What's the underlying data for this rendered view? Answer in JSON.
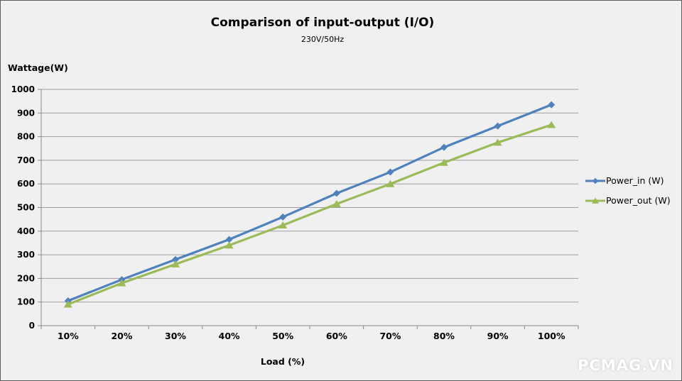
{
  "chart_data": {
    "type": "line",
    "title": "Comparison of input-output (I/O)",
    "subtitle": "230V/50Hz",
    "ylabel": "Wattage(W)",
    "xlabel": "Load (%)",
    "categories": [
      "10%",
      "20%",
      "30%",
      "40%",
      "50%",
      "60%",
      "70%",
      "80%",
      "90%",
      "100%"
    ],
    "series": [
      {
        "name": "Power_in (W)",
        "color": "#4F81BD",
        "marker": "diamond",
        "values": [
          105,
          195,
          280,
          365,
          460,
          560,
          650,
          755,
          845,
          935
        ]
      },
      {
        "name": "Power_out (W)",
        "color": "#9BBB59",
        "marker": "triangle",
        "values": [
          90,
          180,
          260,
          340,
          425,
          515,
          600,
          690,
          775,
          850
        ]
      }
    ],
    "ylim": [
      0,
      1000
    ],
    "yticks": [
      0,
      100,
      200,
      300,
      400,
      500,
      600,
      700,
      800,
      900,
      1000
    ],
    "grid": true,
    "legend_position": "right"
  },
  "watermark": {
    "text": "PCMAG.VN",
    "color": "#FFFFFF"
  },
  "style": {
    "background": "#F0F0F0",
    "border": "#5B5B5B",
    "gridline": "#9D9D9D",
    "axis": "#8A8A8A",
    "text": "#000000"
  }
}
